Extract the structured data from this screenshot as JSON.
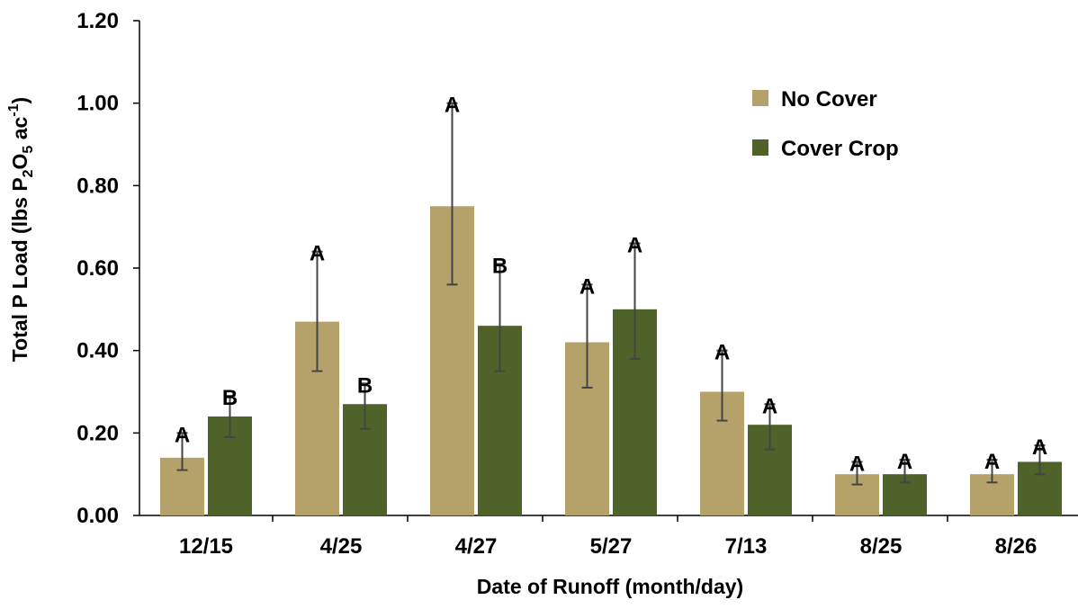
{
  "chart_data": {
    "type": "bar",
    "ylabel_parts": [
      "Total P Load (lbs P",
      "2",
      "O",
      "5",
      " ac",
      "-1",
      ")"
    ],
    "xlabel": "Date of Runoff (month/day)",
    "categories": [
      "12/15",
      "4/25",
      "4/27",
      "5/27",
      "7/13",
      "8/25",
      "8/26"
    ],
    "ylim": [
      0,
      1.2
    ],
    "yticks": [
      "0.00",
      "0.20",
      "0.40",
      "0.60",
      "0.80",
      "1.00",
      "1.20"
    ],
    "ytick_values": [
      0,
      0.2,
      0.4,
      0.6,
      0.8,
      1.0,
      1.2
    ],
    "grid": false,
    "legend_position": "top-right",
    "series": [
      {
        "name": "No Cover",
        "color": "#b5a26b",
        "values": [
          0.14,
          0.47,
          0.75,
          0.42,
          0.3,
          0.1,
          0.1
        ],
        "err_low": [
          0.11,
          0.35,
          0.56,
          0.31,
          0.23,
          0.075,
          0.08
        ],
        "err_high": [
          0.2,
          0.64,
          1.0,
          0.56,
          0.4,
          0.13,
          0.135
        ],
        "letters": [
          "A",
          "A",
          "A",
          "A",
          "A",
          "A",
          "A"
        ]
      },
      {
        "name": "Cover Crop",
        "color": "#4e6229",
        "values": [
          0.24,
          0.27,
          0.46,
          0.5,
          0.22,
          0.1,
          0.13
        ],
        "err_low": [
          0.19,
          0.21,
          0.35,
          0.38,
          0.16,
          0.08,
          0.1
        ],
        "err_high": [
          0.29,
          0.32,
          0.61,
          0.66,
          0.27,
          0.135,
          0.17
        ],
        "letters": [
          "B",
          "B",
          "B",
          "A",
          "A",
          "A",
          "A"
        ]
      }
    ]
  }
}
